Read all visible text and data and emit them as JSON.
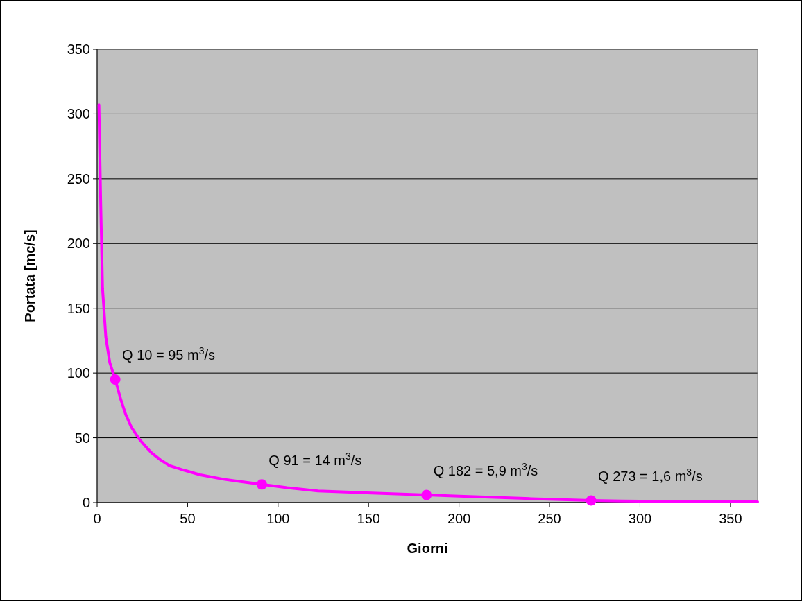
{
  "chart_data": {
    "type": "line",
    "xlabel": "Giorni",
    "ylabel": "Portata [mc/s]",
    "xlim": [
      0,
      365
    ],
    "ylim": [
      0,
      350
    ],
    "xticks": [
      0,
      50,
      100,
      150,
      200,
      250,
      300,
      350
    ],
    "yticks": [
      0,
      50,
      100,
      150,
      200,
      250,
      300,
      350
    ],
    "grid": "y",
    "marker": "none",
    "series": [
      {
        "color": "#ff00ff",
        "x": [
          1,
          2,
          3,
          4.8,
          7,
          10,
          13,
          15.8,
          19,
          23.3,
          27,
          30,
          35,
          40,
          48,
          57,
          70,
          80,
          91,
          105,
          122,
          140,
          160,
          182,
          200,
          220,
          240,
          260,
          273,
          290,
          310,
          330,
          350,
          365
        ],
        "values": [
          307,
          230,
          165,
          128,
          108,
          95,
          80,
          68,
          58,
          49,
          43,
          38.5,
          33,
          28.5,
          25,
          21.4,
          18,
          16,
          14,
          11.5,
          9,
          8,
          7,
          5.9,
          5,
          4,
          3,
          2.2,
          1.6,
          1.2,
          1,
          0.8,
          0.6,
          0.5
        ]
      },
      {
        "type": "scatter",
        "color": "#ff00ff",
        "marker": "circle",
        "x": [
          10,
          91,
          182,
          273
        ],
        "values": [
          95,
          14,
          5.9,
          1.6
        ]
      }
    ],
    "annotations": [
      {
        "text": "Q 10 = 95 m$^{3}$/s",
        "x": 10,
        "y": 95
      },
      {
        "text": "Q 91 = 14 m$^{3}$/s",
        "x": 91,
        "y": 14
      },
      {
        "text": "Q 182 = 5,9 m$^{3}$/s",
        "x": 182,
        "y": 5.9
      },
      {
        "text": "Q 273 = 1,6 m$^{3}$/s",
        "x": 273,
        "y": 1.6
      }
    ]
  }
}
